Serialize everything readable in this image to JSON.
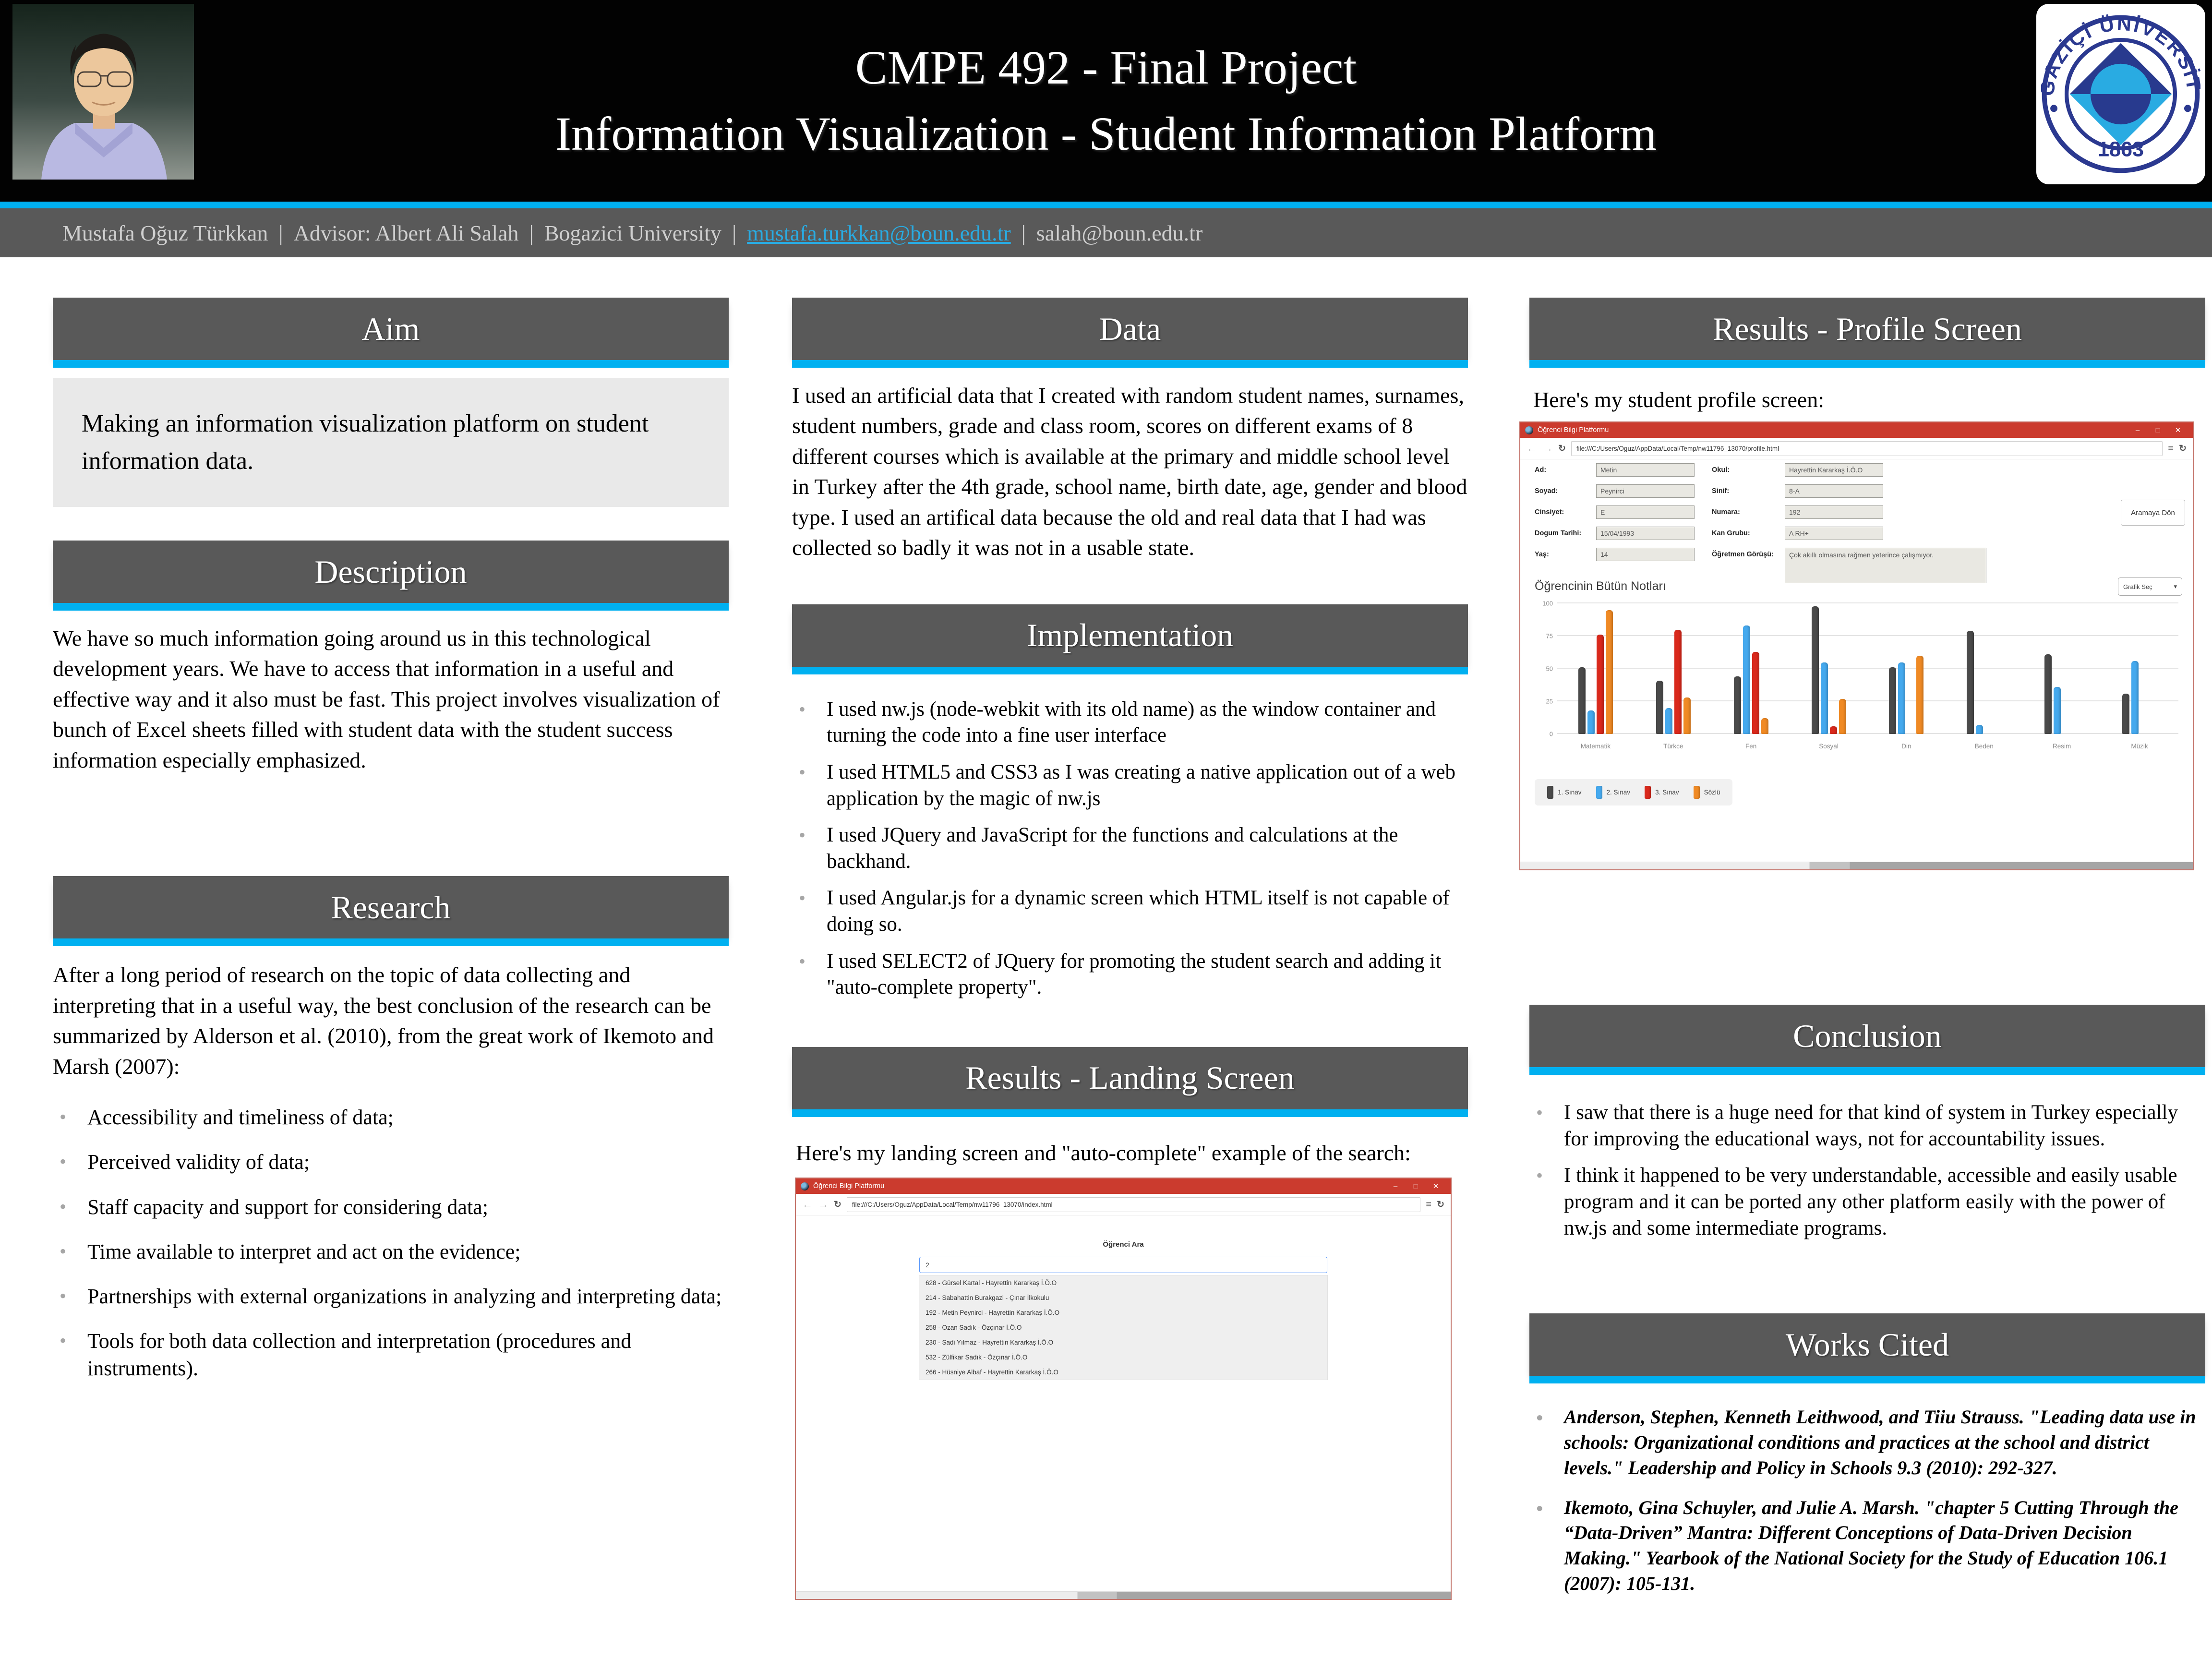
{
  "colors": {
    "accent": "#00b0f0",
    "section_header_bg": "#595959",
    "window_titlebar_red": "#cb3b2e",
    "aim_box_bg": "#e9e9e9",
    "logo_navy": "#2b3990",
    "logo_lightblue": "#29abe2"
  },
  "icons": {
    "back": "←",
    "forward": "→",
    "reload": "↻",
    "menu": "≡",
    "minimize": "–",
    "maximize": "□",
    "close": "✕",
    "caret": "▾"
  },
  "header": {
    "title_line1": "CMPE 492 - Final Project",
    "title_line2": "Information Visualization - Student Information Platform",
    "author": {
      "name": "Mustafa Oğuz Türkkan",
      "advisor": "Advisor: Albert Ali Salah",
      "university": "Bogazici University",
      "email_link": "mustafa.turkkan@boun.edu.tr",
      "email_plain": "salah@boun.edu.tr",
      "separator": "|"
    },
    "logo": {
      "ring_text": "BOĞAZİÇİ ÜNİVERSİTESİ",
      "year": "1863"
    }
  },
  "sections": {
    "aim": {
      "title": "Aim",
      "body": "Making an information visualization platform on student information data."
    },
    "description": {
      "title": "Description",
      "body": "We have so much information going around us in this technological development years. We have to access that information in a useful and effective way and it also must be fast. This project involves visualization of bunch of Excel sheets filled with student data with the student success information especially emphasized."
    },
    "research": {
      "title": "Research",
      "intro": "After a long period of research on the topic of data collecting and interpreting that in a useful way, the best conclusion of the research can be summarized by Alderson et al. (2010), from the great work of Ikemoto and Marsh (2007):",
      "bullets": [
        "Accessibility and timeliness of data;",
        "Perceived validity of data;",
        "Staff capacity and support for considering data;",
        "Time available to interpret and act on the evidence;",
        "Partnerships with external organizations in analyzing and interpreting data;",
        "Tools for both data collection and interpretation (procedures and instruments)."
      ]
    },
    "data": {
      "title": "Data",
      "body": "I used an artificial data that I created with random student names, surnames, student numbers, grade and class room, scores on different exams of 8 different courses which is available at the primary and middle school level in Turkey after the 4th grade, school name, birth date, age, gender and blood type. I used an artifical data because the old and real data that I had was collected so badly it was not in a usable state."
    },
    "implementation": {
      "title": "Implementation",
      "bullets": [
        "I used nw.js (node-webkit with its old name) as the window container and turning the code into a fine user interface",
        "I used HTML5 and CSS3 as I was creating a native application out of a web application by the magic of nw.js",
        "I used JQuery and JavaScript for the functions and calculations at the backhand.",
        "I used Angular.js for a dynamic screen which HTML itself is not capable of doing so.",
        "I used SELECT2 of JQuery for promoting the student search and adding it \"auto-complete property\"."
      ]
    },
    "results_landing": {
      "title": "Results - Landing Screen",
      "intro": "Here's my landing screen and \"auto-complete\" example of the search:"
    },
    "results_profile": {
      "title": "Results - Profile Screen",
      "intro": "Here's my student profile screen:"
    },
    "conclusion": {
      "title": "Conclusion",
      "bullets": [
        "I saw that there is a huge need for that kind of system in Turkey especially for improving the educational ways, not for accountability issues.",
        "I think it happened to be very understandable, accessible and easily usable program and it can be ported any other platform easily with the power of nw.js and some intermediate programs."
      ]
    },
    "works_cited": {
      "title": "Works Cited",
      "refs": [
        "Anderson, Stephen, Kenneth Leithwood, and Tiiu Strauss. \"Leading data use in schools: Organizational conditions and practices at the school and district levels.\" Leadership and Policy in Schools 9.3 (2010): 292-327.",
        "Ikemoto, Gina Schuyler, and Julie A. Marsh. \"chapter 5 Cutting Through the “Data-Driven” Mantra: Different Conceptions of Data-Driven Decision Making.\" Yearbook of the National Society for the Study of Education 106.1 (2007): 105-131."
      ]
    }
  },
  "landing_window": {
    "title": "Öğrenci Bilgi Platformu",
    "url": "file:///C:/Users/Oguz/AppData/Local/Temp/nw11796_13070/index.html",
    "search_label": "Öğrenci Ara",
    "search_value": "2",
    "results": [
      "628 - Gürsel Kartal - Hayrettin Kararkaş İ.Ö.O",
      "214 - Sabahattin Burakgazi - Çınar İlkokulu",
      "192 - Metin Peynirci - Hayrettin Kararkaş İ.Ö.O",
      "258 - Ozan Sadık - Özçınar İ.Ö.O",
      "230 - Sadi Yılmaz - Hayrettin Kararkaş İ.Ö.O",
      "532 - Zülfikar Sadık - Özçınar İ.Ö.O",
      "266 - Hüsniye Albaf - Hayrettin Kararkaş İ.Ö.O"
    ]
  },
  "profile_window": {
    "title": "Öğrenci Bilgi Platformu",
    "url": "file:///C:/Users/Oguz/AppData/Local/Temp/nw11796_13070/profile.html",
    "back_button": "Aramaya Dön",
    "form_rows": [
      {
        "l1": "Ad:",
        "v1": "Metin",
        "l2": "Okul:",
        "v2": "Hayrettin Kararkaş İ.Ö.O"
      },
      {
        "l1": "Soyad:",
        "v1": "Peynirci",
        "l2": "Sinif:",
        "v2": "8-A"
      },
      {
        "l1": "Cinsiyet:",
        "v1": "E",
        "l2": "Numara:",
        "v2": "192"
      },
      {
        "l1": "Dogum Tarihi:",
        "v1": "15/04/1993",
        "l2": "Kan Grubu:",
        "v2": "A RH+"
      }
    ],
    "yas": {
      "label": "Yaş:",
      "value": "14"
    },
    "teacher_note": {
      "label": "Öğretmen Görüşü:",
      "value": "Çok akıllı olmasına rağmen yeterince çalışmıyor."
    },
    "notes_heading": "Öğrencinin Bütün Notları",
    "chart_select_label": "Grafik Seç"
  },
  "chart_data": {
    "type": "bar",
    "title": "Öğrencinin Bütün Notları",
    "categories": [
      "Matematik",
      "Türkce",
      "Fen",
      "Sosyal",
      "Din",
      "Beden",
      "Resim",
      "Müzik"
    ],
    "series": [
      {
        "name": "1. Sınav",
        "color": "#4a4a4a",
        "values": [
          51,
          41,
          44,
          98,
          51,
          79,
          61,
          31
        ]
      },
      {
        "name": "2. Sınav",
        "color": "#45a9ee",
        "values": [
          18,
          20,
          83,
          55,
          55,
          7,
          36,
          56
        ]
      },
      {
        "name": "3. Sınav",
        "color": "#d9291c",
        "values": [
          76,
          80,
          63,
          6,
          0,
          0,
          0,
          0
        ]
      },
      {
        "name": "Sözlü",
        "color": "#f08a24",
        "values": [
          95,
          28,
          12,
          27,
          60,
          0,
          0,
          0
        ]
      }
    ],
    "xlabel": "",
    "ylabel": "",
    "ylim": [
      0,
      100
    ],
    "yticks": [
      0,
      25,
      50,
      75,
      100
    ],
    "grid": true,
    "legend_position": "bottom-left"
  }
}
